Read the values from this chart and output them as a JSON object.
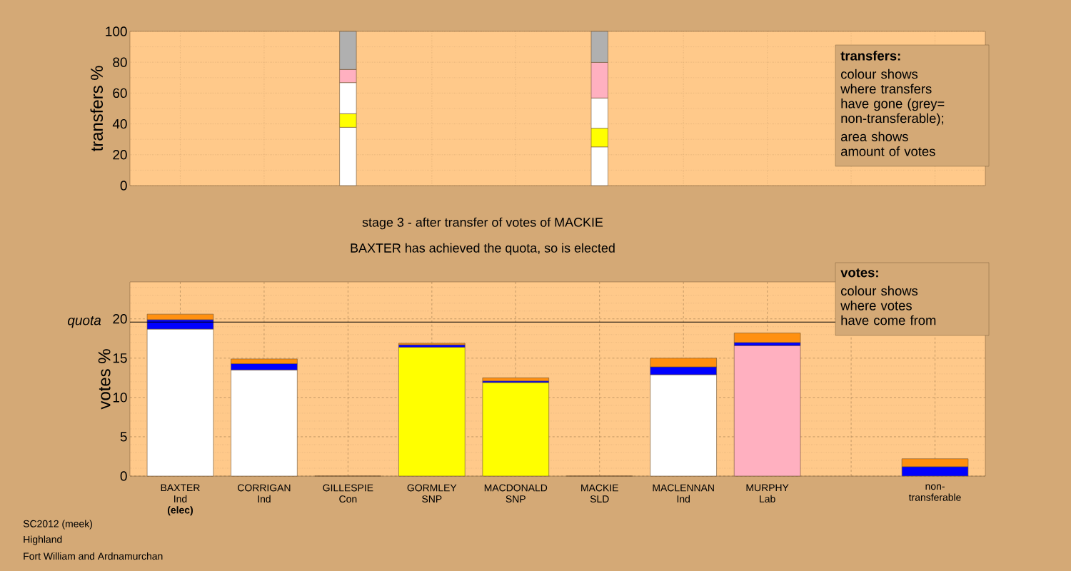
{
  "chart_data": [
    {
      "type": "bar",
      "stacked": true,
      "ylabel": "transfers %",
      "ylim": [
        0,
        100
      ],
      "yticks": [
        0,
        {
          "value": 10,
          "label": null
        },
        20,
        {
          "value": 30,
          "label": null
        },
        40,
        {
          "value": 50,
          "label": null
        },
        60,
        {
          "value": 70,
          "label": null
        },
        80,
        {
          "value": 90,
          "label": null
        },
        100
      ],
      "grid": true,
      "categories": [
        null,
        null,
        null,
        null,
        null,
        null,
        null,
        null,
        null,
        null
      ],
      "series": [
        {
          "color": "#ffffff",
          "values": [
            null,
            null,
            37.8,
            null,
            null,
            25.1,
            null,
            null,
            null,
            null
          ]
        },
        {
          "color": "#ffff00",
          "values": [
            null,
            null,
            8.8,
            null,
            null,
            12.1,
            null,
            null,
            null,
            null
          ]
        },
        {
          "color": "#ffffff",
          "values": [
            null,
            null,
            20.2,
            null,
            null,
            19.6,
            null,
            null,
            null,
            null
          ]
        },
        {
          "color": "#ffb0c0",
          "values": [
            null,
            null,
            8.5,
            null,
            null,
            23.1,
            null,
            null,
            null,
            null
          ]
        },
        {
          "color": "#b0b0b0",
          "values": [
            null,
            null,
            24.7,
            null,
            null,
            20.1,
            null,
            null,
            null,
            null
          ]
        }
      ],
      "annotations": [
        "transfers:",
        "colour shows where transfers have gone (grey= non-transferable);",
        "area shows amount of votes"
      ]
    },
    {
      "type": "bar",
      "stacked": true,
      "title": "stage 3 - after transfer of votes of MACKIE",
      "subtitle": "BAXTER has achieved the quota, so is elected",
      "ylabel": "votes %",
      "ylim": [
        0,
        24.7
      ],
      "yticks": [
        0,
        {
          "value": 1,
          "label": null
        },
        {
          "value": 2,
          "label": null
        },
        {
          "value": 3,
          "label": null
        },
        {
          "value": 4,
          "label": null
        },
        5,
        {
          "value": 6,
          "label": null
        },
        {
          "value": 7,
          "label": null
        },
        {
          "value": 8,
          "label": null
        },
        {
          "value": 9,
          "label": null
        },
        10,
        {
          "value": 11,
          "label": null
        },
        {
          "value": 12,
          "label": null
        },
        {
          "value": 13,
          "label": null
        },
        {
          "value": 14,
          "label": null
        },
        15,
        {
          "value": 16,
          "label": null
        },
        {
          "value": 17,
          "label": null
        },
        {
          "value": 18,
          "label": null
        },
        {
          "value": 19,
          "label": null
        },
        20,
        {
          "value": 21,
          "label": null
        },
        {
          "value": 22,
          "label": null
        },
        {
          "value": 23,
          "label": null
        },
        {
          "value": 24,
          "label": null
        }
      ],
      "grid": true,
      "categories": [
        "BAXTER Ind **(elec)**",
        "CORRIGAN Ind",
        "GILLESPIE Con",
        "GORMLEY SNP",
        "MACDONALD SNP",
        "MACKIE SLD",
        "MACLENNAN Ind",
        "MURPHY Lab",
        null,
        "non-transferable"
      ],
      "series": [
        {
          "colors": [
            "#ffffff",
            "#ffffff",
            "#ffffff",
            "#ffff00",
            "#ffff00",
            "#ffffff",
            "#ffffff",
            "#ffb0c0",
            "#ffffff",
            "#ffffff"
          ],
          "values": [
            18.7,
            13.5,
            0,
            16.4,
            11.9,
            0,
            12.9,
            16.6,
            null,
            null
          ]
        },
        {
          "color": "#0000ff",
          "values": [
            1.2,
            0.8,
            null,
            0.3,
            0.2,
            null,
            1.0,
            0.4,
            null,
            1.2
          ]
        },
        {
          "color": "#ff9010",
          "values": [
            0.7,
            0.6,
            null,
            0.2,
            0.4,
            null,
            1.1,
            1.2,
            null,
            1.0
          ]
        }
      ],
      "ref_lines": [
        {
          "axis": "y",
          "value": 19.6,
          "label": "quota"
        }
      ],
      "annotations": [
        "votes:",
        "colour shows where votes have come from",
        "SC2012 (meek)",
        "Highland",
        "Fort William and Ardnamurchan"
      ]
    }
  ]
}
